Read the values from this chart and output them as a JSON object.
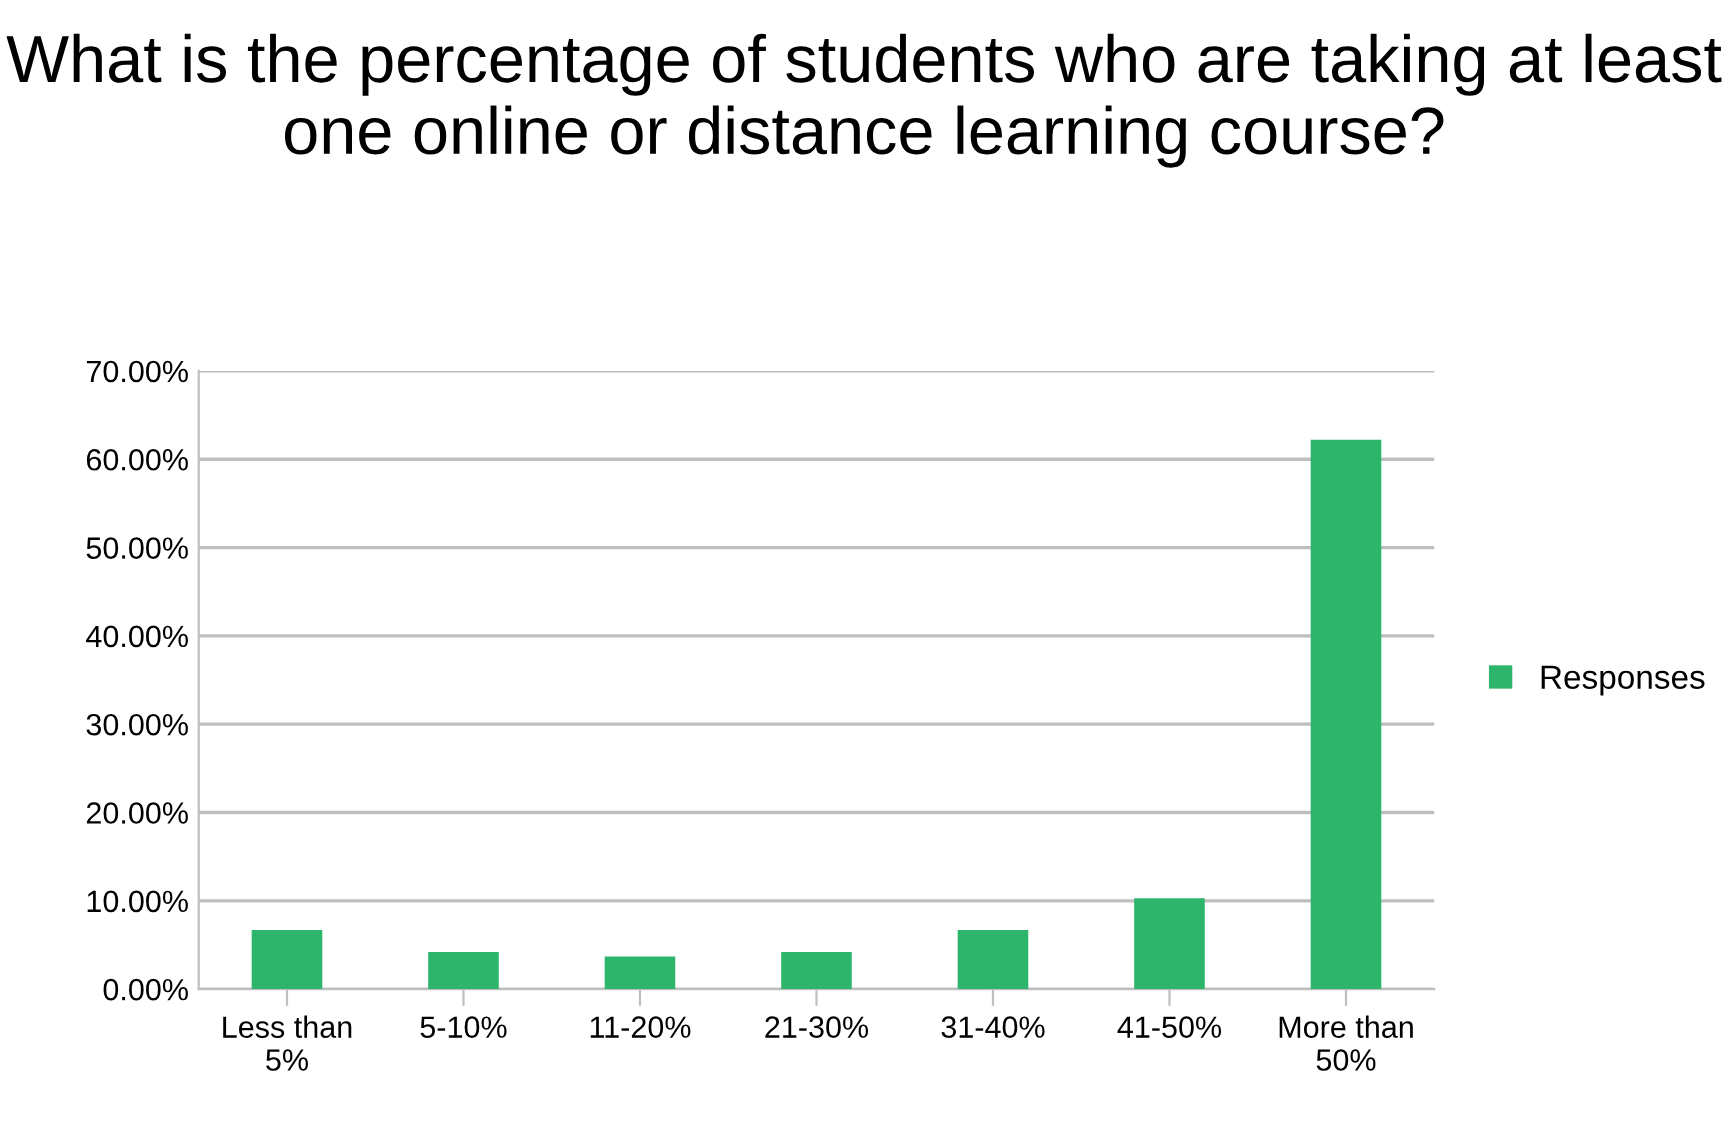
{
  "chart_data": {
    "type": "bar",
    "title": "What is the percentage of students who are taking at least one online or distance learning course?",
    "categories": [
      "Less than\n5%",
      "5-10%",
      "11-20%",
      "21-30%",
      "31-40%",
      "41-50%",
      "More than\n50%"
    ],
    "series": [
      {
        "name": "Responses",
        "color": "#2db56b",
        "values": [
          6.7,
          4.2,
          3.7,
          4.2,
          6.7,
          10.3,
          62.2
        ]
      }
    ],
    "ylim": [
      0,
      70
    ],
    "yticks": [
      {
        "value": 0,
        "label": "0.00%"
      },
      {
        "value": 10,
        "label": "10.00%"
      },
      {
        "value": 20,
        "label": "20.00%"
      },
      {
        "value": 30,
        "label": "30.00%"
      },
      {
        "value": 40,
        "label": "40.00%"
      },
      {
        "value": 50,
        "label": "50.00%"
      },
      {
        "value": 60,
        "label": "60.00%"
      },
      {
        "value": 70,
        "label": "70.00%"
      }
    ],
    "grid": "y",
    "legend": "right"
  }
}
